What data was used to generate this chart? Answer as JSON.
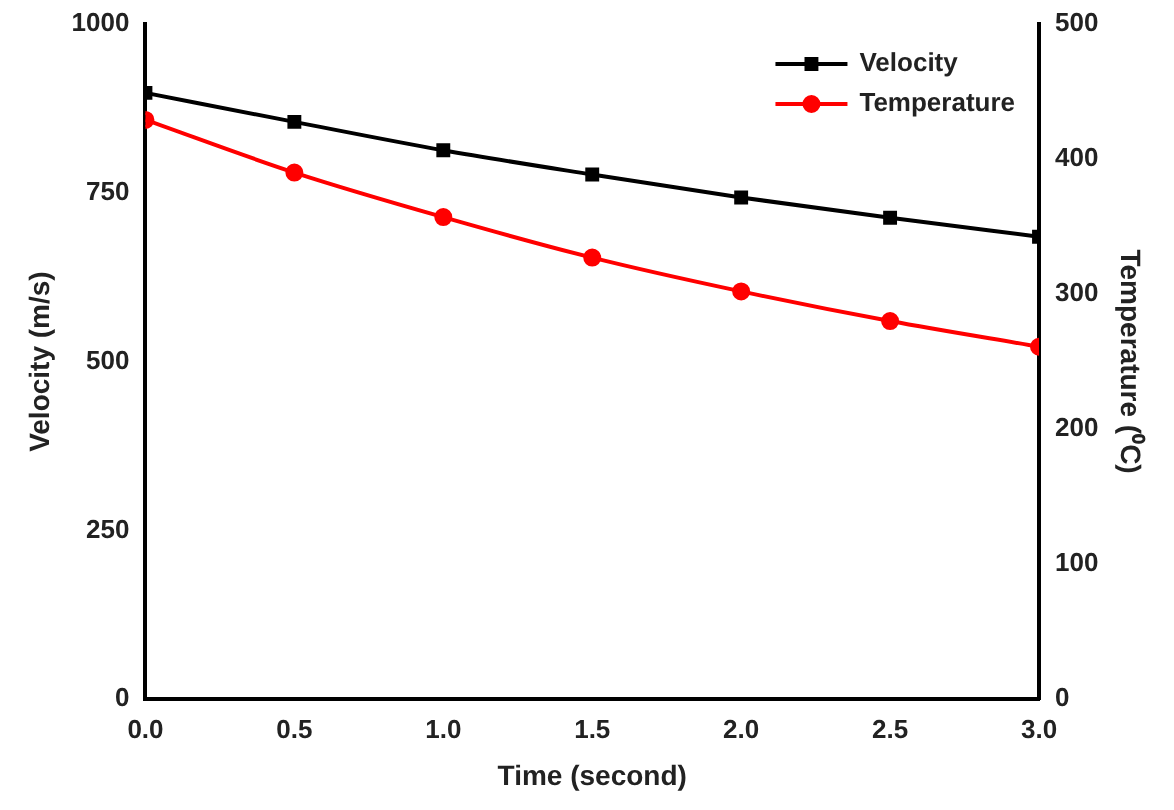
{
  "chart_data": {
    "type": "line",
    "xlabel": "Time (second)",
    "ylabel": "Velocity (m/s)",
    "y2label": "Temperature (⁰C)",
    "x": [
      0,
      0.5,
      1,
      1.5,
      2,
      2.5,
      3
    ],
    "series": [
      {
        "name": "Velocity",
        "color": "#000000",
        "marker": "square",
        "values": [
          898,
          855,
          813,
          777,
          743,
          713,
          685
        ]
      },
      {
        "name": "Temperature",
        "color": "#ff0000",
        "marker": "circle",
        "axis": "y2",
        "values": [
          429,
          390,
          357,
          327,
          302,
          280,
          261
        ]
      }
    ],
    "xlim": [
      0,
      3
    ],
    "xticks": [
      {
        "value": 0,
        "label": "0.0"
      },
      {
        "value": 0.5,
        "label": "0.5"
      },
      {
        "value": 1,
        "label": "1.0"
      },
      {
        "value": 1.5,
        "label": "1.5"
      },
      {
        "value": 2,
        "label": "2.0"
      },
      {
        "value": 2.5,
        "label": "2.5"
      },
      {
        "value": 3,
        "label": "3.0"
      }
    ],
    "ylim": [
      0,
      1000
    ],
    "yticks": [
      0,
      250,
      500,
      750,
      1000
    ],
    "y2lim": [
      0,
      500
    ],
    "y2ticks": [
      0,
      100,
      200,
      300,
      400,
      500
    ],
    "grid": false,
    "legend": "top right",
    "line_style": "solid"
  }
}
